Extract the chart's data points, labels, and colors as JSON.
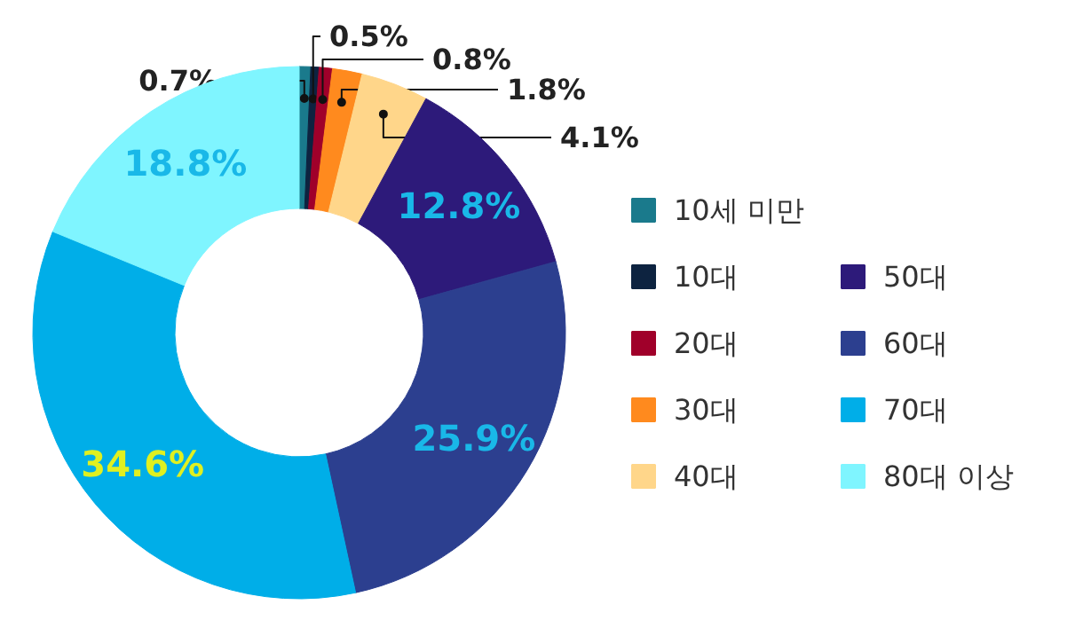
{
  "chart_data": {
    "type": "donut",
    "categories": [
      "10세 미만",
      "10대",
      "20대",
      "30대",
      "40대",
      "50대",
      "60대",
      "70대",
      "80대 이상"
    ],
    "values": [
      0.7,
      0.5,
      0.8,
      1.8,
      4.1,
      12.8,
      25.9,
      34.6,
      18.8
    ],
    "colors": [
      "#1a7a8c",
      "#0d2340",
      "#a0002a",
      "#ff8a1e",
      "#ffd68a",
      "#2d1a7a",
      "#2c3f8f",
      "#00aee8",
      "#7ff5ff"
    ],
    "value_labels": [
      "0.7%",
      "0.5%",
      "0.8%",
      "1.8%",
      "4.1%",
      "12.8%",
      "25.9%",
      "34.6%",
      "18.8%"
    ],
    "legend": "right"
  }
}
